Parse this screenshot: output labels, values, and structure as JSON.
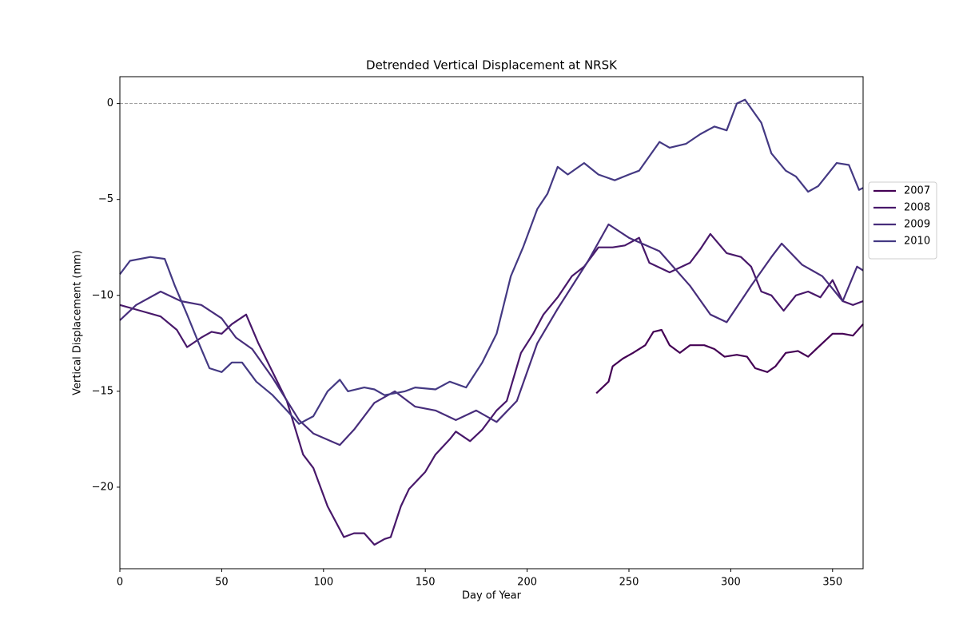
{
  "chart_data": {
    "type": "line",
    "title": "Detrended Vertical Displacement at NRSK",
    "xlabel": "Day of Year",
    "ylabel": "Vertical Displacement (mm)",
    "xlim": [
      0,
      365
    ],
    "ylim": [
      -24.25,
      1.4
    ],
    "xticks": [
      0,
      50,
      100,
      150,
      200,
      250,
      300,
      350
    ],
    "yticks": [
      {
        "value": -20,
        "label": "−20"
      },
      {
        "value": -15,
        "label": "−15"
      },
      {
        "value": -10,
        "label": "−10"
      },
      {
        "value": -5,
        "label": "−5"
      },
      0
    ],
    "hline": 0,
    "legend": "outside-right",
    "series": [
      {
        "name": "2007",
        "color": "#440154",
        "x": [
          234,
          237,
          240,
          242,
          247,
          252,
          258,
          262,
          266,
          270,
          275,
          280,
          287,
          292,
          297,
          303,
          308,
          312,
          318,
          322,
          327,
          333,
          338,
          343,
          350,
          355,
          360,
          365
        ],
        "values": [
          -15.1,
          -14.8,
          -14.5,
          -13.7,
          -13.3,
          -13,
          -12.6,
          -11.9,
          -11.8,
          -12.6,
          -13,
          -12.6,
          -12.6,
          -12.8,
          -13.2,
          -13.1,
          -13.2,
          -13.8,
          -14,
          -13.7,
          -13,
          -12.9,
          -13.2,
          -12.7,
          -12,
          -12,
          -12.1,
          -11.5
        ]
      },
      {
        "name": "2008",
        "color": "#48186a",
        "x": [
          0,
          10,
          20,
          28,
          33,
          40,
          45,
          50,
          55,
          62,
          68,
          75,
          82,
          90,
          95,
          102,
          110,
          115,
          120,
          125,
          130,
          133,
          138,
          142,
          150,
          155,
          162,
          165,
          172,
          178,
          185,
          190,
          197,
          203,
          208,
          215,
          222,
          228,
          235,
          242,
          248,
          255,
          260,
          270,
          280,
          285,
          290,
          298,
          305,
          310,
          315,
          320,
          326,
          332,
          338,
          344,
          350,
          355,
          360,
          365
        ],
        "values": [
          -10.5,
          -10.8,
          -11.1,
          -11.8,
          -12.7,
          -12.2,
          -11.9,
          -12,
          -11.5,
          -11,
          -12.5,
          -14,
          -15.5,
          -18.3,
          -19,
          -21,
          -22.6,
          -22.4,
          -22.4,
          -23,
          -22.7,
          -22.6,
          -21,
          -20.1,
          -19.2,
          -18.3,
          -17.5,
          -17.1,
          -17.6,
          -17,
          -16,
          -15.5,
          -13,
          -12,
          -11,
          -10.1,
          -9,
          -8.5,
          -7.5,
          -7.5,
          -7.4,
          -7,
          -8.3,
          -8.8,
          -8.3,
          -7.6,
          -6.8,
          -7.8,
          -8,
          -8.5,
          -9.8,
          -10,
          -10.8,
          -10,
          -9.8,
          -10.1,
          -9.2,
          -10.3,
          -10.5,
          -10.3
        ]
      },
      {
        "name": "2009",
        "color": "#472d7b",
        "x": [
          0,
          8,
          20,
          30,
          40,
          50,
          57,
          65,
          75,
          88,
          95,
          108,
          115,
          125,
          135,
          145,
          155,
          165,
          175,
          185,
          195,
          205,
          215,
          230,
          240,
          250,
          265,
          280,
          290,
          298,
          310,
          320,
          325,
          335,
          345,
          355,
          362,
          365
        ],
        "values": [
          -11.3,
          -10.5,
          -9.8,
          -10.3,
          -10.5,
          -11.2,
          -12.2,
          -12.8,
          -14.3,
          -16.5,
          -17.2,
          -17.8,
          -17,
          -15.6,
          -15,
          -15.8,
          -16,
          -16.5,
          -16,
          -16.6,
          -15.5,
          -12.5,
          -10.7,
          -8.2,
          -6.3,
          -7,
          -7.7,
          -9.5,
          -11,
          -11.4,
          -9.5,
          -8,
          -7.3,
          -8.4,
          -9,
          -10.3,
          -8.5,
          -8.7
        ]
      },
      {
        "name": "2010",
        "color": "#443983",
        "x": [
          0,
          5,
          15,
          22,
          27,
          33,
          38,
          44,
          50,
          55,
          60,
          67,
          75,
          82,
          88,
          95,
          102,
          108,
          112,
          120,
          125,
          130,
          140,
          145,
          155,
          162,
          170,
          178,
          185,
          192,
          198,
          205,
          210,
          215,
          220,
          228,
          235,
          243,
          250,
          255,
          265,
          270,
          278,
          285,
          292,
          298,
          303,
          307,
          315,
          320,
          327,
          332,
          338,
          343,
          352,
          358,
          363,
          365
        ],
        "values": [
          -8.9,
          -8.2,
          -8,
          -8.1,
          -9.5,
          -11,
          -12.3,
          -13.8,
          -14,
          -13.5,
          -13.5,
          -14.5,
          -15.2,
          -16,
          -16.7,
          -16.3,
          -15,
          -14.4,
          -15,
          -14.8,
          -14.9,
          -15.2,
          -15,
          -14.8,
          -14.9,
          -14.5,
          -14.8,
          -13.5,
          -12,
          -9,
          -7.5,
          -5.5,
          -4.7,
          -3.3,
          -3.7,
          -3.1,
          -3.7,
          -4,
          -3.7,
          -3.5,
          -2,
          -2.3,
          -2.1,
          -1.6,
          -1.2,
          -1.4,
          0,
          0.2,
          -1,
          -2.6,
          -3.5,
          -3.8,
          -4.6,
          -4.3,
          -3.1,
          -3.2,
          -4.5,
          -4.4
        ]
      }
    ]
  }
}
